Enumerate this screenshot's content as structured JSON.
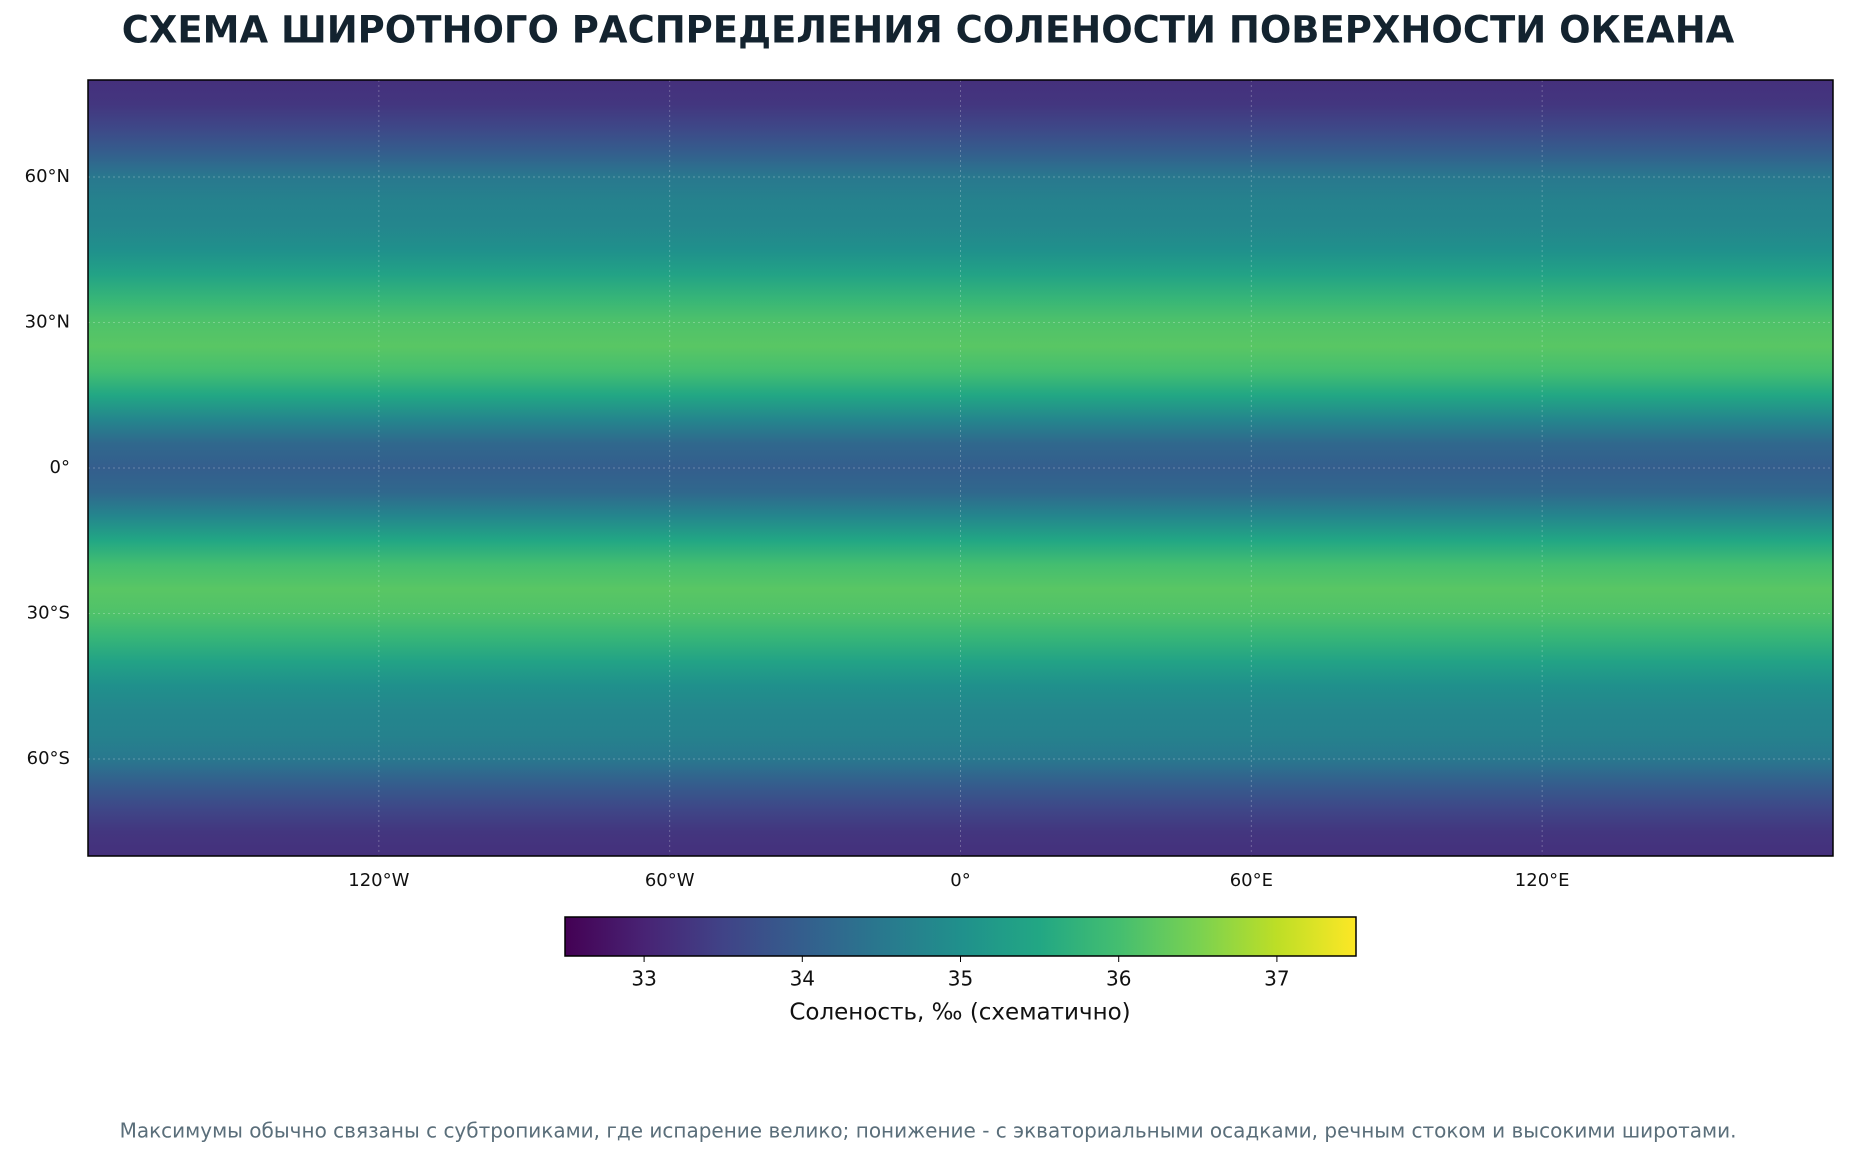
{
  "chart_data": {
    "type": "latitude-map",
    "title": "СХЕМА ШИРОТНОГО РАСПРЕДЕЛЕНИЯ СОЛЕНОСТИ ПОВЕРХНОСТИ ОКЕАНА",
    "xlim": [
      -180,
      180
    ],
    "ylim": [
      -80,
      80
    ],
    "xticks": [
      {
        "value": -120,
        "label": "120°W"
      },
      {
        "value": -60,
        "label": "60°W"
      },
      {
        "value": 0,
        "label": "0°"
      },
      {
        "value": 60,
        "label": "60°E"
      },
      {
        "value": 120,
        "label": "120°E"
      }
    ],
    "yticks": [
      {
        "value": -60,
        "label": "60°S"
      },
      {
        "value": -30,
        "label": "30°S"
      },
      {
        "value": 0,
        "label": "0°"
      },
      {
        "value": 30,
        "label": "30°N"
      },
      {
        "value": 60,
        "label": "60°N"
      }
    ],
    "grid": true,
    "latitudes": [
      -80,
      -75,
      -70,
      -65,
      -60,
      -55,
      -50,
      -45,
      -40,
      -35,
      -30,
      -25,
      -20,
      -15,
      -10,
      -5,
      0,
      5,
      10,
      15,
      20,
      25,
      30,
      35,
      40,
      45,
      50,
      55,
      60,
      65,
      70,
      75,
      80
    ],
    "salinity": [
      33.2,
      33.3,
      33.6,
      34.0,
      34.5,
      34.7,
      34.8,
      35.0,
      35.4,
      35.8,
      36.1,
      36.2,
      36.0,
      35.5,
      34.8,
      34.2,
      34.0,
      34.2,
      34.8,
      35.5,
      36.0,
      36.2,
      36.1,
      35.8,
      35.4,
      35.0,
      34.8,
      34.7,
      34.5,
      34.0,
      33.6,
      33.3,
      33.2
    ],
    "colormap": "viridis",
    "colorbar": {
      "label": "Соленость, ‰ (схематично)",
      "clim": [
        32.5,
        37.5
      ],
      "ticks": [
        33,
        34,
        35,
        36,
        37
      ]
    },
    "note": "Максимумы обычно связаны с субтропиками, где испарение велико; понижение - с экваториальными осадками, речным стоком и высокими широтами."
  }
}
